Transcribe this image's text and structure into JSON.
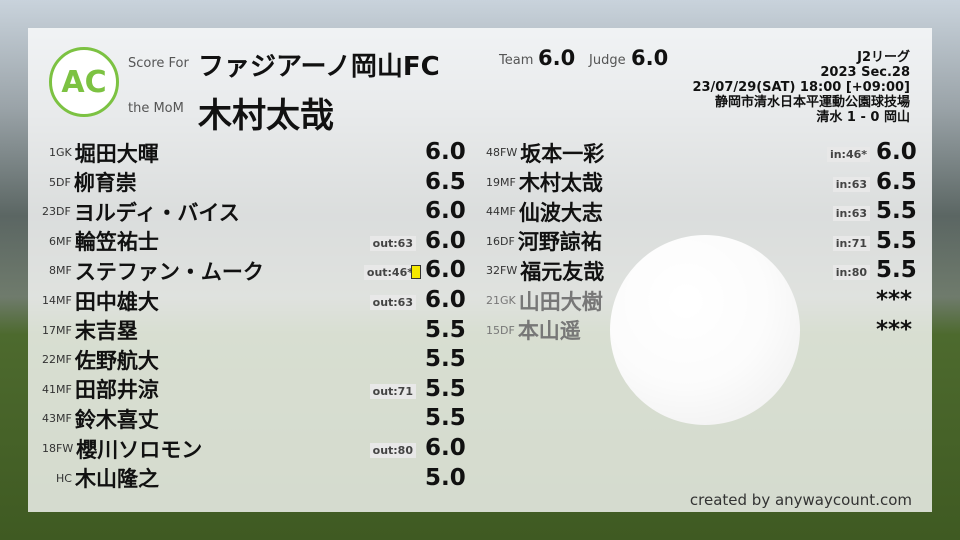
{
  "header": {
    "logo_text": "AC",
    "logo_ring": "ANYWAY COUNT",
    "score_for_label": "Score For",
    "team": "ファジアーノ岡山FC",
    "mom_label": "the MoM",
    "mom": "木村太哉",
    "team_label": "Team",
    "team_score": "6.0",
    "judge_label": "Judge",
    "judge_score": "6.0"
  },
  "match": {
    "league": "J2リーグ",
    "section": "2023 Sec.28",
    "datetime": "23/07/29(SAT) 18:00 [+09:00]",
    "venue": "静岡市清水日本平運動公園球技場",
    "result": "清水 1 - 0 岡山"
  },
  "starters": [
    {
      "num": "1",
      "pos": "GK",
      "name": "堀田大暉",
      "score": "6.0",
      "sub": ""
    },
    {
      "num": "5",
      "pos": "DF",
      "name": "柳育崇",
      "score": "6.5",
      "sub": ""
    },
    {
      "num": "23",
      "pos": "DF",
      "name": "ヨルディ・バイス",
      "score": "6.0",
      "sub": ""
    },
    {
      "num": "6",
      "pos": "MF",
      "name": "輪笠祐士",
      "score": "6.0",
      "sub": "out:63"
    },
    {
      "num": "8",
      "pos": "MF",
      "name": "ステファン・ムーク",
      "score": "6.0",
      "sub": "out:46*",
      "card": "yellow"
    },
    {
      "num": "14",
      "pos": "MF",
      "name": "田中雄大",
      "score": "6.0",
      "sub": "out:63"
    },
    {
      "num": "17",
      "pos": "MF",
      "name": "末吉塁",
      "score": "5.5",
      "sub": ""
    },
    {
      "num": "22",
      "pos": "MF",
      "name": "佐野航大",
      "score": "5.5",
      "sub": ""
    },
    {
      "num": "41",
      "pos": "MF",
      "name": "田部井涼",
      "score": "5.5",
      "sub": "out:71"
    },
    {
      "num": "43",
      "pos": "MF",
      "name": "鈴木喜丈",
      "score": "5.5",
      "sub": ""
    },
    {
      "num": "18",
      "pos": "FW",
      "name": "櫻川ソロモン",
      "score": "6.0",
      "sub": "out:80"
    },
    {
      "num": "",
      "pos": "HC",
      "name": "木山隆之",
      "score": "5.0",
      "sub": ""
    }
  ],
  "bench": [
    {
      "num": "48",
      "pos": "FW",
      "name": "坂本一彩",
      "score": "6.0",
      "sub": "in:46*"
    },
    {
      "num": "19",
      "pos": "MF",
      "name": "木村太哉",
      "score": "6.5",
      "sub": "in:63"
    },
    {
      "num": "44",
      "pos": "MF",
      "name": "仙波大志",
      "score": "5.5",
      "sub": "in:63"
    },
    {
      "num": "16",
      "pos": "DF",
      "name": "河野諒祐",
      "score": "5.5",
      "sub": "in:71"
    },
    {
      "num": "32",
      "pos": "FW",
      "name": "福元友哉",
      "score": "5.5",
      "sub": "in:80"
    },
    {
      "num": "21",
      "pos": "GK",
      "name": "山田大樹",
      "score": "***",
      "sub": ""
    },
    {
      "num": "15",
      "pos": "DF",
      "name": "本山遥",
      "score": "***",
      "sub": ""
    }
  ],
  "credit": "created by anywaycount.com",
  "colors": {
    "logo": "#7cc242",
    "yellow_card": "#f5e800"
  }
}
